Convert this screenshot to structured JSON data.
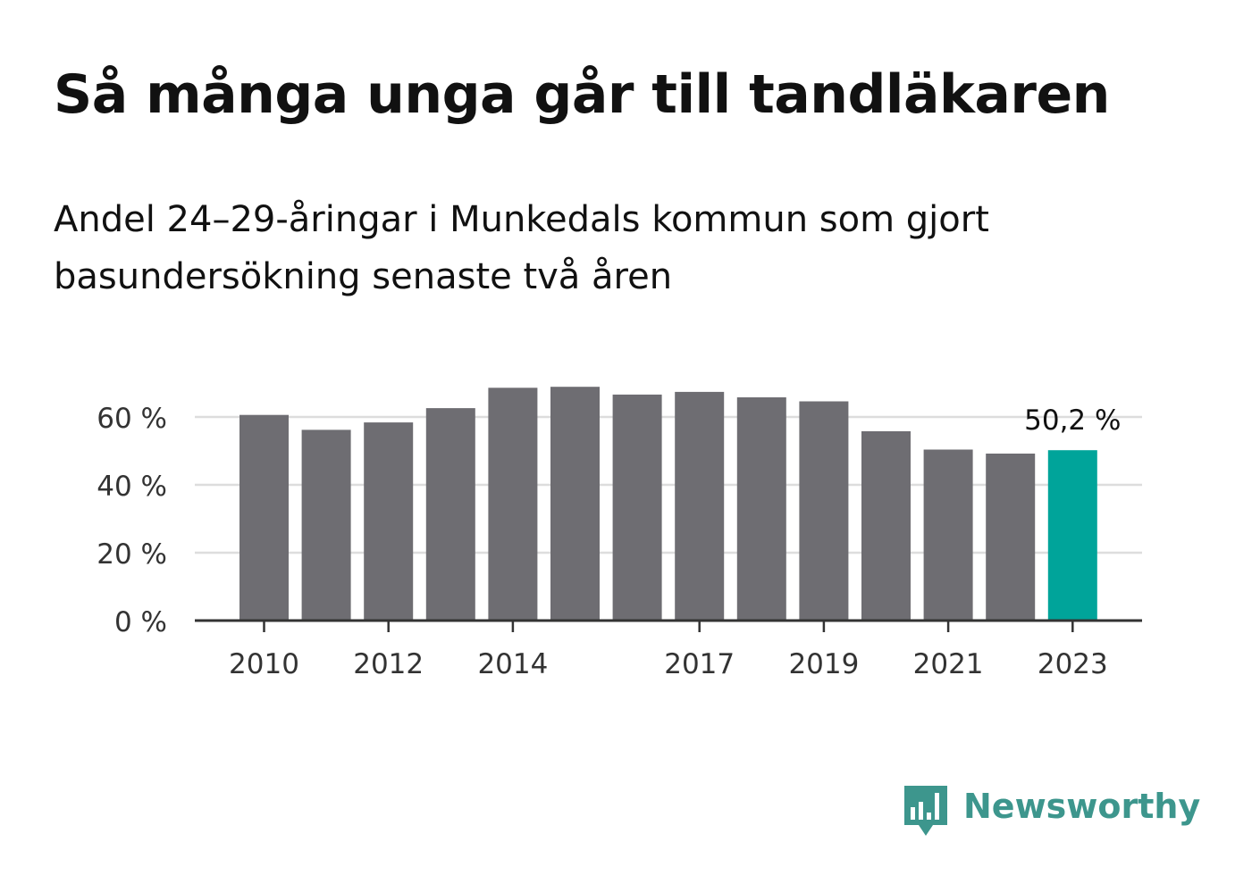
{
  "header": {
    "title": "Så många unga går till tandläkaren",
    "subtitle": "Andel 24–29-åringar i Munkedals kommun som gjort basundersökning senaste två åren"
  },
  "branding": {
    "logo_text": "Newsworthy",
    "logo_icon": "bar-chart-speech-bubble-icon",
    "logo_color": "#3d968d"
  },
  "colors": {
    "bar": "#6e6d72",
    "highlight": "#00a49a",
    "grid": "#dddddd",
    "axis": "#333333"
  },
  "chart_data": {
    "type": "bar",
    "title": "Så många unga går till tandläkaren",
    "subtitle": "Andel 24–29-åringar i Munkedals kommun som gjort basundersökning senaste två åren",
    "categories": [
      "2010",
      "2011",
      "2012",
      "2013",
      "2014",
      "2015",
      "2016",
      "2017",
      "2018",
      "2019",
      "2020",
      "2021",
      "2022",
      "2023"
    ],
    "values": [
      60.6,
      56.2,
      58.4,
      62.6,
      68.6,
      68.9,
      66.6,
      67.4,
      65.8,
      64.6,
      55.8,
      50.4,
      49.2,
      50.2
    ],
    "highlight_index": 13,
    "x_tick_labels": [
      "2010",
      "2012",
      "2014",
      "2017",
      "2019",
      "2021",
      "2023"
    ],
    "y_ticks": [
      0,
      20,
      40,
      60
    ],
    "y_tick_labels": [
      "0 %",
      "20 %",
      "40 %",
      "60 %"
    ],
    "ylim": [
      0,
      70
    ],
    "annotation": {
      "label": "50,2 %",
      "category": "2023"
    },
    "xlabel": "",
    "ylabel": "",
    "grid": true,
    "legend": false
  }
}
